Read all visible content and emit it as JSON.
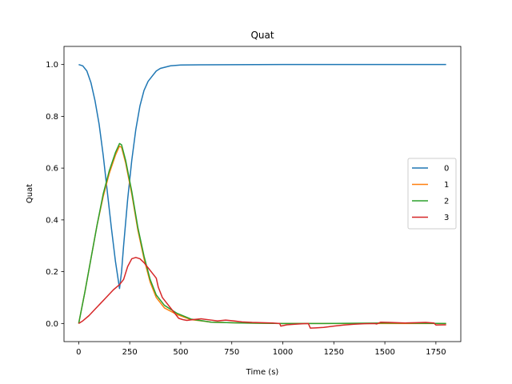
{
  "chart_data": {
    "type": "line",
    "title": "Quat",
    "xlabel": "Time (s)",
    "ylabel": "Quat",
    "xlim": [
      -72,
      1872
    ],
    "ylim": [
      -0.07,
      1.07
    ],
    "xticks": [
      0,
      250,
      500,
      750,
      1000,
      1250,
      1500,
      1750
    ],
    "yticks": [
      0.0,
      0.2,
      0.4,
      0.6,
      0.8,
      1.0
    ],
    "xtick_labels": [
      "0",
      "250",
      "500",
      "750",
      "1000",
      "1250",
      "1500",
      "1750"
    ],
    "ytick_labels": [
      "0.0",
      "0.2",
      "0.4",
      "0.6",
      "0.8",
      "1.0"
    ],
    "legend_position": "center-right",
    "grid": false,
    "series": [
      {
        "name": "0",
        "color": "#1f77b4",
        "points": [
          [
            0,
            1.0
          ],
          [
            20,
            0.995
          ],
          [
            40,
            0.975
          ],
          [
            60,
            0.93
          ],
          [
            80,
            0.86
          ],
          [
            100,
            0.77
          ],
          [
            120,
            0.65
          ],
          [
            140,
            0.51
          ],
          [
            160,
            0.37
          ],
          [
            180,
            0.24
          ],
          [
            200,
            0.135
          ],
          [
            210,
            0.2
          ],
          [
            220,
            0.3
          ],
          [
            240,
            0.48
          ],
          [
            260,
            0.63
          ],
          [
            280,
            0.75
          ],
          [
            300,
            0.84
          ],
          [
            320,
            0.9
          ],
          [
            340,
            0.935
          ],
          [
            360,
            0.955
          ],
          [
            380,
            0.975
          ],
          [
            400,
            0.985
          ],
          [
            450,
            0.995
          ],
          [
            500,
            0.998
          ],
          [
            600,
            0.999
          ],
          [
            1000,
            1.0
          ],
          [
            1500,
            1.0
          ],
          [
            1800,
            1.0
          ]
        ]
      },
      {
        "name": "1",
        "color": "#ff7f0e",
        "points": [
          [
            0,
            0.0
          ],
          [
            30,
            0.12
          ],
          [
            60,
            0.25
          ],
          [
            90,
            0.38
          ],
          [
            120,
            0.49
          ],
          [
            150,
            0.58
          ],
          [
            180,
            0.65
          ],
          [
            200,
            0.685
          ],
          [
            210,
            0.68
          ],
          [
            230,
            0.62
          ],
          [
            260,
            0.5
          ],
          [
            290,
            0.36
          ],
          [
            320,
            0.25
          ],
          [
            350,
            0.16
          ],
          [
            380,
            0.1
          ],
          [
            420,
            0.06
          ],
          [
            480,
            0.035
          ],
          [
            550,
            0.015
          ],
          [
            650,
            0.005
          ],
          [
            800,
            0.002
          ],
          [
            1000,
            0.0
          ],
          [
            1200,
            0.0
          ],
          [
            1500,
            0.0
          ],
          [
            1800,
            0.0
          ]
        ]
      },
      {
        "name": "2",
        "color": "#2ca02c",
        "points": [
          [
            0,
            0.0
          ],
          [
            30,
            0.12
          ],
          [
            60,
            0.25
          ],
          [
            90,
            0.38
          ],
          [
            120,
            0.5
          ],
          [
            150,
            0.59
          ],
          [
            180,
            0.66
          ],
          [
            200,
            0.695
          ],
          [
            210,
            0.69
          ],
          [
            230,
            0.63
          ],
          [
            260,
            0.51
          ],
          [
            290,
            0.37
          ],
          [
            320,
            0.26
          ],
          [
            350,
            0.17
          ],
          [
            380,
            0.11
          ],
          [
            420,
            0.07
          ],
          [
            480,
            0.04
          ],
          [
            550,
            0.017
          ],
          [
            650,
            0.005
          ],
          [
            800,
            0.002
          ],
          [
            1000,
            0.0
          ],
          [
            1200,
            0.0
          ],
          [
            1500,
            0.002
          ],
          [
            1800,
            0.0
          ]
        ]
      },
      {
        "name": "3",
        "color": "#d62728",
        "points": [
          [
            0,
            0.0
          ],
          [
            20,
            0.01
          ],
          [
            50,
            0.03
          ],
          [
            80,
            0.055
          ],
          [
            110,
            0.08
          ],
          [
            140,
            0.105
          ],
          [
            170,
            0.13
          ],
          [
            200,
            0.15
          ],
          [
            220,
            0.17
          ],
          [
            240,
            0.22
          ],
          [
            260,
            0.25
          ],
          [
            280,
            0.255
          ],
          [
            300,
            0.25
          ],
          [
            320,
            0.235
          ],
          [
            340,
            0.215
          ],
          [
            360,
            0.195
          ],
          [
            380,
            0.175
          ],
          [
            390,
            0.14
          ],
          [
            410,
            0.1
          ],
          [
            440,
            0.07
          ],
          [
            470,
            0.04
          ],
          [
            490,
            0.02
          ],
          [
            510,
            0.015
          ],
          [
            530,
            0.012
          ],
          [
            560,
            0.015
          ],
          [
            600,
            0.018
          ],
          [
            640,
            0.014
          ],
          [
            680,
            0.01
          ],
          [
            720,
            0.013
          ],
          [
            760,
            0.01
          ],
          [
            800,
            0.006
          ],
          [
            850,
            0.004
          ],
          [
            900,
            0.003
          ],
          [
            950,
            0.002
          ],
          [
            985,
            0.0
          ],
          [
            990,
            -0.01
          ],
          [
            1020,
            -0.005
          ],
          [
            1060,
            -0.003
          ],
          [
            1100,
            -0.001
          ],
          [
            1125,
            0.0
          ],
          [
            1135,
            -0.018
          ],
          [
            1160,
            -0.017
          ],
          [
            1200,
            -0.015
          ],
          [
            1250,
            -0.01
          ],
          [
            1300,
            -0.006
          ],
          [
            1350,
            -0.003
          ],
          [
            1400,
            -0.001
          ],
          [
            1450,
            0.0
          ],
          [
            1460,
            -0.002
          ],
          [
            1480,
            0.005
          ],
          [
            1520,
            0.004
          ],
          [
            1560,
            0.003
          ],
          [
            1600,
            0.002
          ],
          [
            1650,
            0.003
          ],
          [
            1700,
            0.004
          ],
          [
            1740,
            0.002
          ],
          [
            1750,
            -0.006
          ],
          [
            1800,
            -0.005
          ]
        ]
      }
    ]
  }
}
